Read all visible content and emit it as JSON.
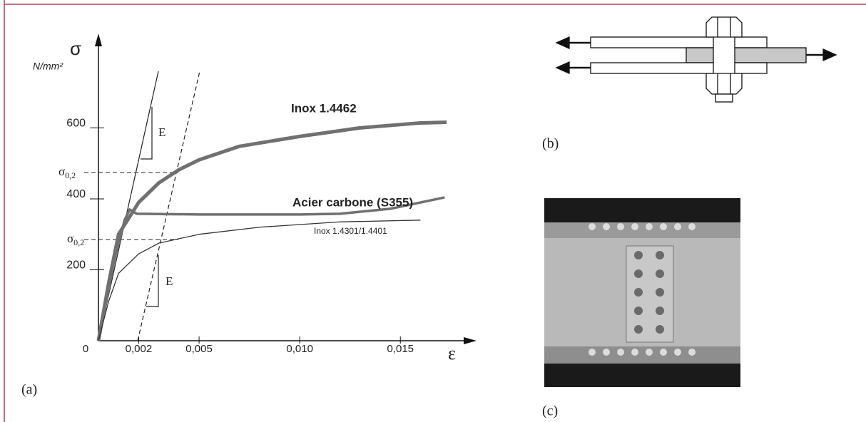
{
  "chart_data": {
    "type": "line",
    "y_symbol": "σ",
    "y_unit": "N/mm²",
    "x_label": "ε",
    "xlim": [
      0,
      0.0185
    ],
    "ylim": [
      0,
      850
    ],
    "xticks": [
      {
        "value": 0,
        "label": "0"
      },
      {
        "value": 0.002,
        "label": "0,002"
      },
      {
        "value": 0.005,
        "label": "0,005"
      },
      {
        "value": 0.01,
        "label": "0,010"
      },
      {
        "value": 0.015,
        "label": "0,015"
      }
    ],
    "yticks": [
      200,
      400,
      600
    ],
    "series": [
      {
        "name": "Inox 1.4462",
        "color": "#707070",
        "x": [
          0,
          0.0005,
          0.001,
          0.002,
          0.003,
          0.004,
          0.005,
          0.007,
          0.01,
          0.013,
          0.016,
          0.0173
        ],
        "values": [
          0,
          160,
          300,
          390,
          445,
          482,
          510,
          548,
          576,
          600,
          614,
          616
        ]
      },
      {
        "name": "Acier carbone (S355)",
        "color": "#707070",
        "x": [
          0,
          0.0008,
          0.0013,
          0.00155,
          0.0019,
          0.005,
          0.01,
          0.012,
          0.0145,
          0.0172
        ],
        "values": [
          0,
          230,
          340,
          370,
          358,
          356,
          356,
          358,
          372,
          404
        ]
      },
      {
        "name": "Inox 1.4301/1.4401",
        "color": "#333333",
        "x": [
          0,
          0.0005,
          0.001,
          0.002,
          0.003,
          0.005,
          0.008,
          0.012,
          0.016
        ],
        "values": [
          0,
          110,
          190,
          245,
          275,
          300,
          320,
          335,
          340
        ]
      }
    ],
    "annotations": [
      {
        "text": "σ",
        "sub": "0,2"
      },
      {
        "text": "σ",
        "sub": "0,2"
      },
      {
        "text": "E"
      },
      {
        "text": "E"
      }
    ]
  },
  "panel_labels": [
    "(a)",
    "(b)",
    "(c)"
  ]
}
